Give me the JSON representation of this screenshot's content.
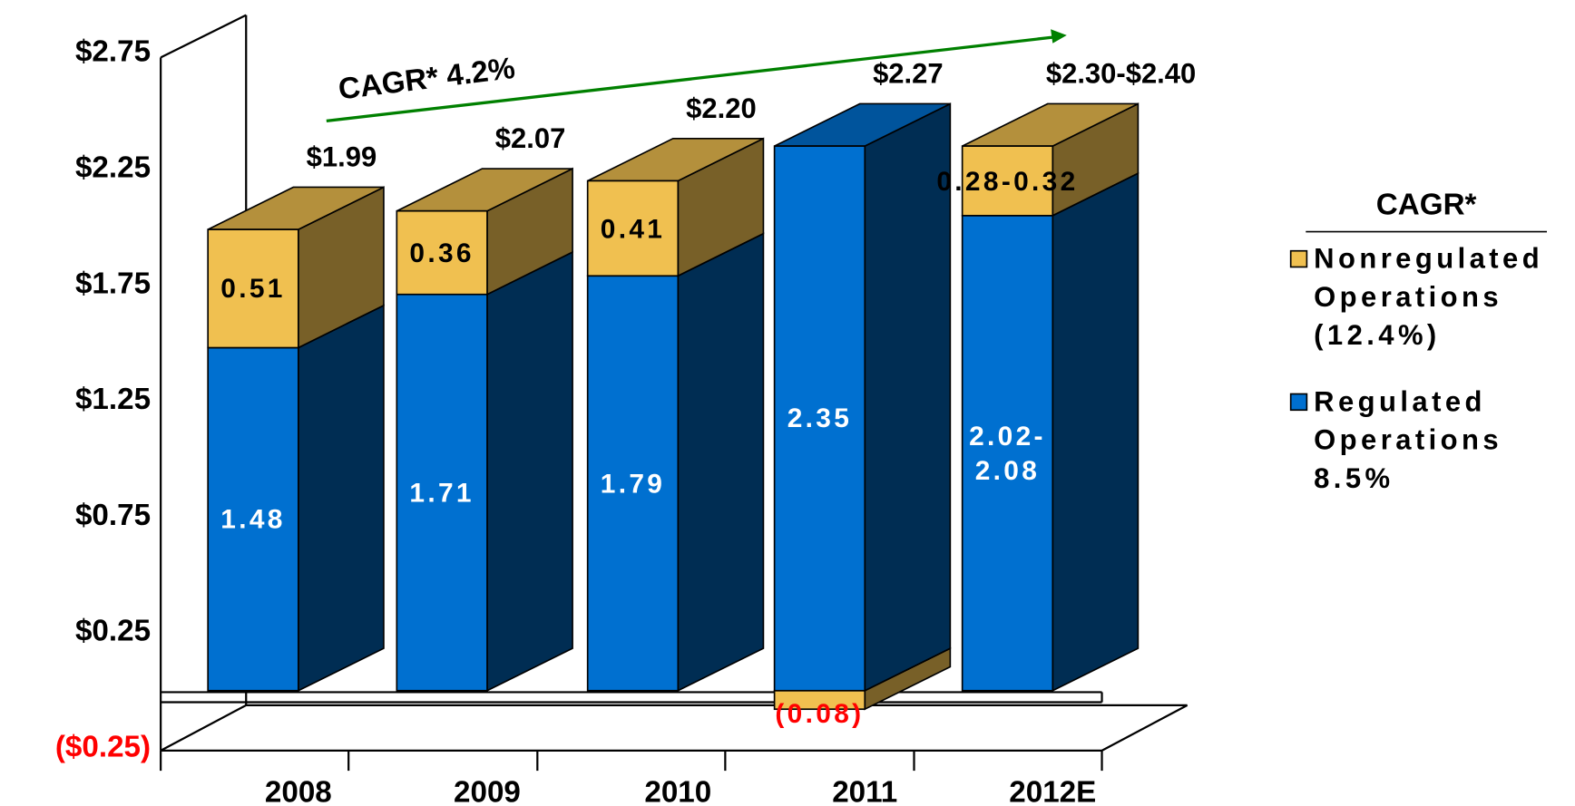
{
  "chart_data": {
    "type": "bar",
    "stacked": true,
    "categories": [
      "2008",
      "2009",
      "2010",
      "2011",
      "2012E"
    ],
    "series": [
      {
        "name": "Regulated Operations 8.5%",
        "color": "#0070d0",
        "values": [
          1.48,
          1.71,
          1.79,
          2.35,
          2.05
        ],
        "value_labels": [
          "1.48",
          "1.71",
          "1.79",
          "2.35",
          "2.02-2.08"
        ]
      },
      {
        "name": "Nonregulated Operations (12.4%)",
        "color": "#f0c050",
        "values": [
          0.51,
          0.36,
          0.41,
          -0.08,
          0.3
        ],
        "value_labels": [
          "0.51",
          "0.36",
          "0.41",
          "(0.08)",
          "0.28-0.32"
        ]
      }
    ],
    "totals": [
      1.99,
      2.07,
      2.2,
      2.27,
      2.35
    ],
    "total_labels": [
      "$1.99",
      "$2.07",
      "$2.20",
      "$2.27",
      "$2.30-$2.40"
    ],
    "ylim": [
      -0.25,
      2.75
    ],
    "yticks": [
      {
        "value": -0.25,
        "label": "($0.25)"
      },
      {
        "value": 0.25,
        "label": "$0.25"
      },
      {
        "value": 0.75,
        "label": "$0.75"
      },
      {
        "value": 1.25,
        "label": "$1.25"
      },
      {
        "value": 1.75,
        "label": "$1.75"
      },
      {
        "value": 2.25,
        "label": "$2.25"
      },
      {
        "value": 2.75,
        "label": "$2.75"
      }
    ],
    "annotation": "CAGR*  4.2%",
    "legend_title": "CAGR*"
  }
}
